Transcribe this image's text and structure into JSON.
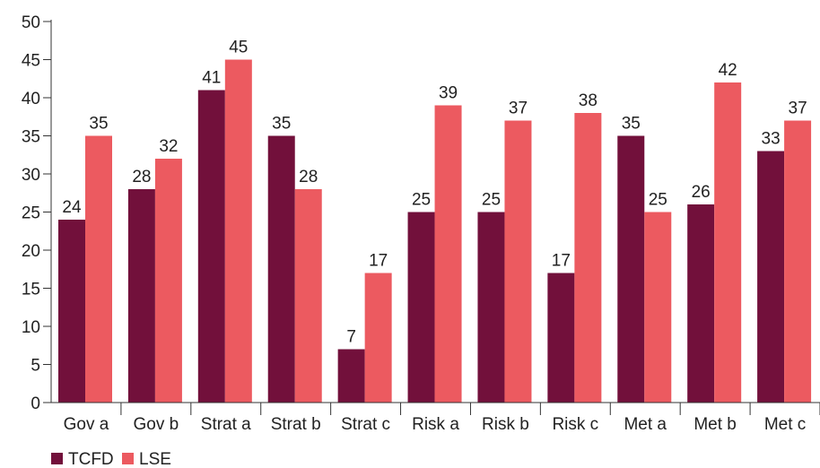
{
  "chart_data": {
    "type": "bar",
    "categories": [
      "Gov a",
      "Gov b",
      "Strat a",
      "Strat b",
      "Strat c",
      "Risk a",
      "Risk b",
      "Risk c",
      "Met a",
      "Met b",
      "Met c"
    ],
    "series": [
      {
        "name": "TCFD",
        "color": "#72103b",
        "values": [
          24,
          28,
          41,
          35,
          7,
          25,
          25,
          17,
          35,
          26,
          33
        ]
      },
      {
        "name": "LSE",
        "color": "#ec5a60",
        "values": [
          35,
          32,
          45,
          28,
          17,
          39,
          37,
          38,
          25,
          42,
          37
        ]
      }
    ],
    "y_ticks": [
      "0",
      "5",
      "10",
      "15",
      "20",
      "25",
      "30",
      "35",
      "40",
      "45",
      "50"
    ],
    "ylim": [
      0,
      50
    ],
    "grid": false,
    "legend_position": "bottom-left"
  }
}
